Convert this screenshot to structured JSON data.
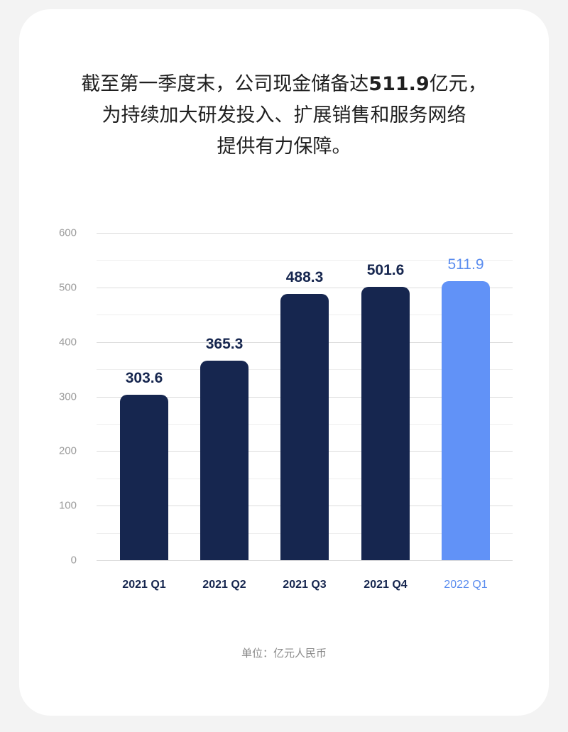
{
  "headline": {
    "line1_prefix": "截至第一季度末，公司现金储备达",
    "line1_highlight": "511.9",
    "line1_suffix": "亿元，",
    "line2": "为持续加大研发投入、扩展销售和服务网络",
    "line3": "提供有力保障。"
  },
  "unit_note": "单位：亿元人民币",
  "colors": {
    "bar_default": "#16264f",
    "bar_highlight": "#6192f7",
    "label_default": "#16264f",
    "label_highlight": "#5b8def",
    "tick_text": "#9a9a9a",
    "gridline": "#dcdcdc",
    "background": "#f3f3f3",
    "card": "#ffffff"
  },
  "chart_data": {
    "type": "bar",
    "title": "截至第一季度末，公司现金储备达511.9亿元，为持续加大研发投入、扩展销售和服务网络提供有力保障。",
    "xlabel": "",
    "ylabel": "",
    "unit": "亿元人民币",
    "categories": [
      "2021 Q1",
      "2021 Q2",
      "2021 Q3",
      "2021 Q4",
      "2022 Q1"
    ],
    "values": [
      303.6,
      365.3,
      488.3,
      501.6,
      511.9
    ],
    "value_labels": [
      "303.6",
      "365.3",
      "488.3",
      "501.6",
      "511.9"
    ],
    "highlighted_index": 4,
    "ylim": [
      0,
      600
    ],
    "yticks": [
      0,
      100,
      200,
      300,
      400,
      500,
      600
    ],
    "ytick_labels": [
      "0",
      "100",
      "200",
      "300",
      "400",
      "500",
      "600"
    ],
    "grid": true,
    "minor_grid": [
      50,
      150,
      250,
      350,
      450,
      550
    ],
    "legend": null
  }
}
